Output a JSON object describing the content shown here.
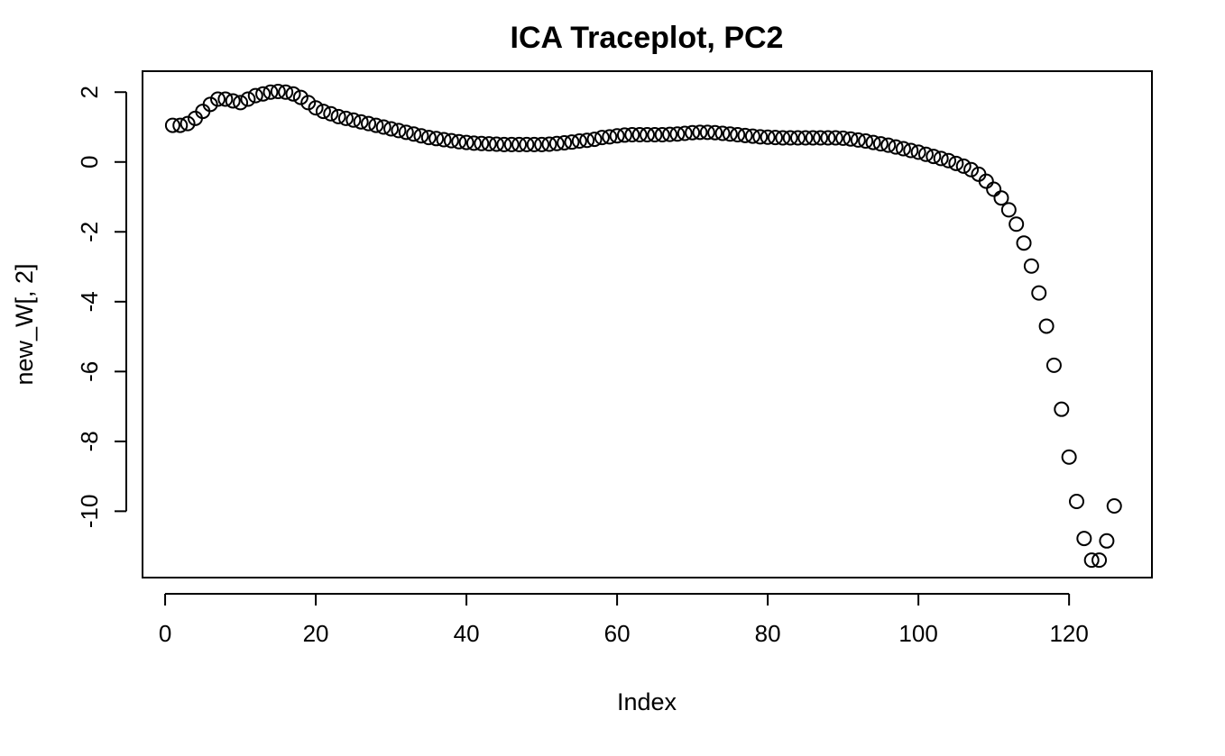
{
  "chart_data": {
    "type": "scatter",
    "title": "ICA Traceplot, PC2",
    "xlabel": "Index",
    "ylabel": "new_W[, 2]",
    "xlim": [
      -3,
      131
    ],
    "ylim": [
      -11.9,
      2.6
    ],
    "xticks": [
      0,
      20,
      40,
      60,
      80,
      100,
      120
    ],
    "yticks": [
      2,
      0,
      -2,
      -4,
      -6,
      -8,
      -10
    ],
    "xtick_labels": [
      "0",
      "20",
      "40",
      "60",
      "80",
      "100",
      "120"
    ],
    "ytick_labels": [
      "2",
      "0",
      "-2",
      "-4",
      "-6",
      "-8",
      "-10"
    ],
    "grid": false,
    "legend": false,
    "marker": "open-circle",
    "x": [
      1,
      2,
      3,
      4,
      5,
      6,
      7,
      8,
      9,
      10,
      11,
      12,
      13,
      14,
      15,
      16,
      17,
      18,
      19,
      20,
      21,
      22,
      23,
      24,
      25,
      26,
      27,
      28,
      29,
      30,
      31,
      32,
      33,
      34,
      35,
      36,
      37,
      38,
      39,
      40,
      41,
      42,
      43,
      44,
      45,
      46,
      47,
      48,
      49,
      50,
      51,
      52,
      53,
      54,
      55,
      56,
      57,
      58,
      59,
      60,
      61,
      62,
      63,
      64,
      65,
      66,
      67,
      68,
      69,
      70,
      71,
      72,
      73,
      74,
      75,
      76,
      77,
      78,
      79,
      80,
      81,
      82,
      83,
      84,
      85,
      86,
      87,
      88,
      89,
      90,
      91,
      92,
      93,
      94,
      95,
      96,
      97,
      98,
      99,
      100,
      101,
      102,
      103,
      104,
      105,
      106,
      107,
      108,
      109,
      110,
      111,
      112,
      113,
      114,
      115,
      116,
      117,
      118,
      119,
      120,
      121,
      122,
      123,
      124,
      125,
      126
    ],
    "y": [
      1.05,
      1.05,
      1.1,
      1.25,
      1.45,
      1.65,
      1.8,
      1.8,
      1.75,
      1.7,
      1.8,
      1.9,
      1.95,
      2.0,
      2.02,
      2.0,
      1.95,
      1.85,
      1.7,
      1.55,
      1.45,
      1.38,
      1.3,
      1.25,
      1.2,
      1.15,
      1.1,
      1.05,
      1.0,
      0.95,
      0.9,
      0.85,
      0.8,
      0.75,
      0.7,
      0.67,
      0.64,
      0.61,
      0.58,
      0.56,
      0.54,
      0.53,
      0.52,
      0.51,
      0.5,
      0.5,
      0.5,
      0.5,
      0.5,
      0.5,
      0.51,
      0.53,
      0.55,
      0.57,
      0.6,
      0.62,
      0.65,
      0.7,
      0.72,
      0.75,
      0.77,
      0.78,
      0.78,
      0.78,
      0.78,
      0.78,
      0.79,
      0.8,
      0.82,
      0.84,
      0.85,
      0.85,
      0.84,
      0.82,
      0.8,
      0.78,
      0.76,
      0.74,
      0.72,
      0.71,
      0.7,
      0.69,
      0.69,
      0.69,
      0.69,
      0.69,
      0.69,
      0.69,
      0.69,
      0.68,
      0.66,
      0.63,
      0.6,
      0.56,
      0.52,
      0.48,
      0.43,
      0.38,
      0.33,
      0.28,
      0.22,
      0.16,
      0.1,
      0.04,
      -0.04,
      -0.12,
      -0.22,
      -0.35,
      -0.55,
      -0.78,
      -1.03,
      -1.37,
      -1.78,
      -2.32,
      -2.98,
      -3.75,
      -4.7,
      -5.82,
      -7.08,
      -8.45,
      -9.72,
      -10.78,
      -11.4,
      -11.4,
      -10.85,
      -9.85
    ]
  }
}
